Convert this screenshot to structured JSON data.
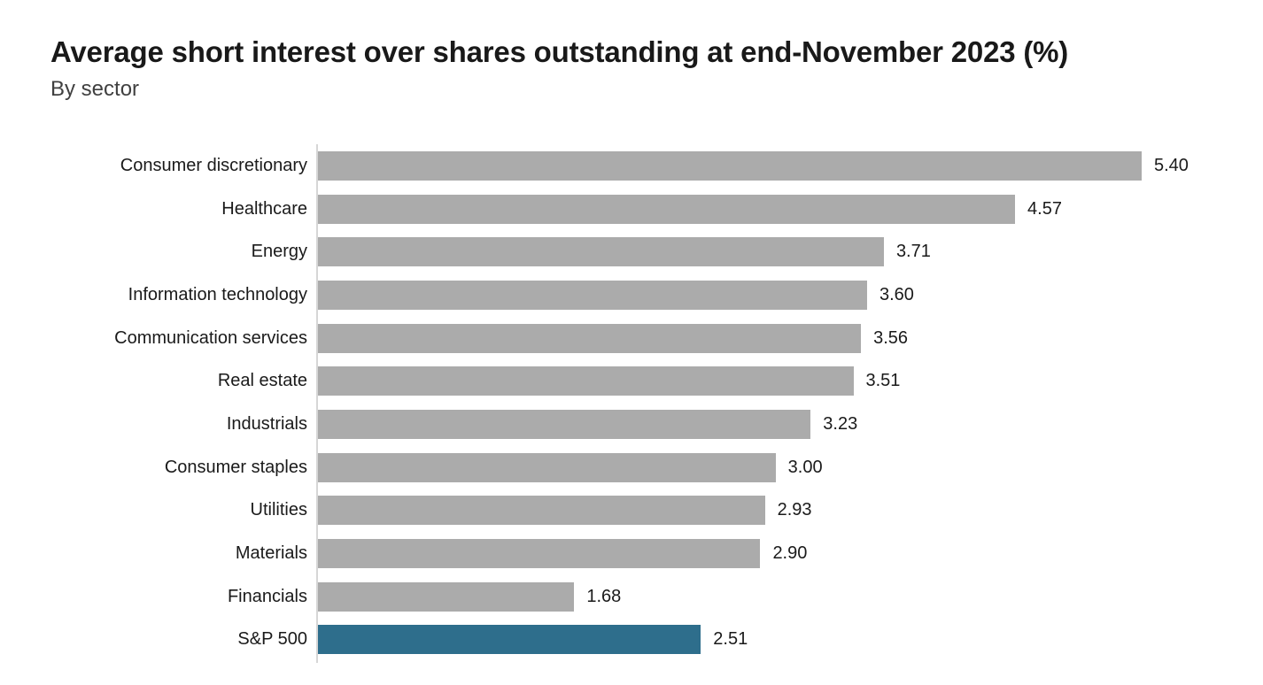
{
  "header": {
    "title": "Average short interest over shares outstanding at end-November 2023 (%)",
    "subtitle": "By sector"
  },
  "chart_data": {
    "type": "bar",
    "orientation": "horizontal",
    "title": "Average short interest over shares outstanding at end-November 2023 (%)",
    "subtitle": "By sector",
    "xlabel": "",
    "ylabel": "",
    "xlim": [
      0,
      5.8
    ],
    "grid": false,
    "legend": false,
    "categories": [
      "Consumer discretionary",
      "Healthcare",
      "Energy",
      "Information technology",
      "Communication services",
      "Real estate",
      "Industrials",
      "Consumer staples",
      "Utilities",
      "Materials",
      "Financials",
      "S&P 500"
    ],
    "values": [
      5.4,
      4.57,
      3.71,
      3.6,
      3.56,
      3.51,
      3.23,
      3.0,
      2.93,
      2.9,
      1.68,
      2.51
    ],
    "value_labels": [
      "5.40",
      "4.57",
      "3.71",
      "3.60",
      "3.56",
      "3.51",
      "3.23",
      "3.00",
      "2.93",
      "2.90",
      "1.68",
      "2.51"
    ],
    "highlight_category": "S&P 500",
    "colors": {
      "bar_default": "#ababab",
      "bar_highlight": "#2e6e8c",
      "axis_line": "#d6d6d6",
      "title_text": "#191919",
      "subtitle_text": "#404040",
      "label_text": "#1a1a1a"
    }
  }
}
